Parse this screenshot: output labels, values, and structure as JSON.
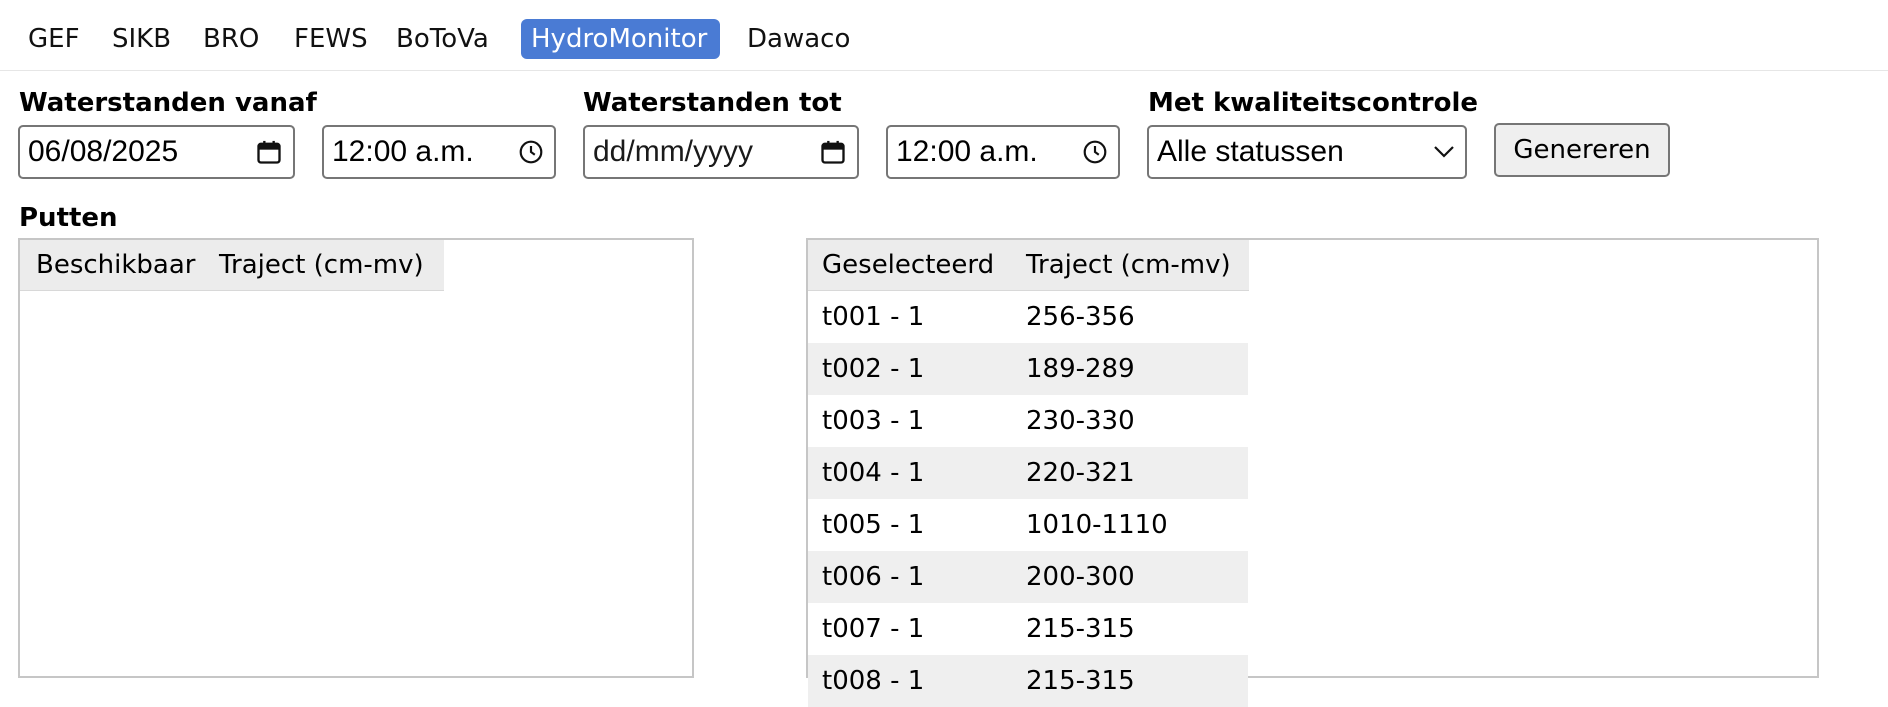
{
  "tabs": [
    {
      "label": "GEF"
    },
    {
      "label": "SIKB"
    },
    {
      "label": "BRO"
    },
    {
      "label": "FEWS"
    },
    {
      "label": "BoToVa"
    },
    {
      "label": "HydroMonitor"
    },
    {
      "label": "Dawaco"
    }
  ],
  "form": {
    "vanaf_label": "Waterstanden vanaf",
    "vanaf_date": "06/08/2025",
    "vanaf_time": "12:00 a.m.",
    "tot_label": "Waterstanden tot",
    "tot_date": "dd/mm/yyyy",
    "tot_time": "12:00 a.m.",
    "kwaliteit_label": "Met kwaliteitscontrole",
    "kwaliteit_value": "Alle statussen",
    "generate_label": "Genereren"
  },
  "putten": {
    "label": "Putten",
    "available": {
      "col1": "Beschikbaar",
      "col2": "Traject (cm-mv)",
      "rows": []
    },
    "selected": {
      "col1": "Geselecteerd",
      "col2": "Traject (cm-mv)",
      "rows": [
        {
          "name": "t001 - 1",
          "traject": "256-356"
        },
        {
          "name": "t002 - 1",
          "traject": "189-289"
        },
        {
          "name": "t003 - 1",
          "traject": "230-330"
        },
        {
          "name": "t004 - 1",
          "traject": "220-321"
        },
        {
          "name": "t005 - 1",
          "traject": "1010-1110"
        },
        {
          "name": "t006 - 1",
          "traject": "200-300"
        },
        {
          "name": "t007 - 1",
          "traject": "215-315"
        },
        {
          "name": "t008 - 1",
          "traject": "215-315"
        }
      ]
    }
  },
  "colors": {
    "active_tab": "#4a7bd4"
  },
  "icons": {
    "date": "calendar-icon",
    "time": "clock-icon",
    "select": "chevron-down-icon"
  }
}
